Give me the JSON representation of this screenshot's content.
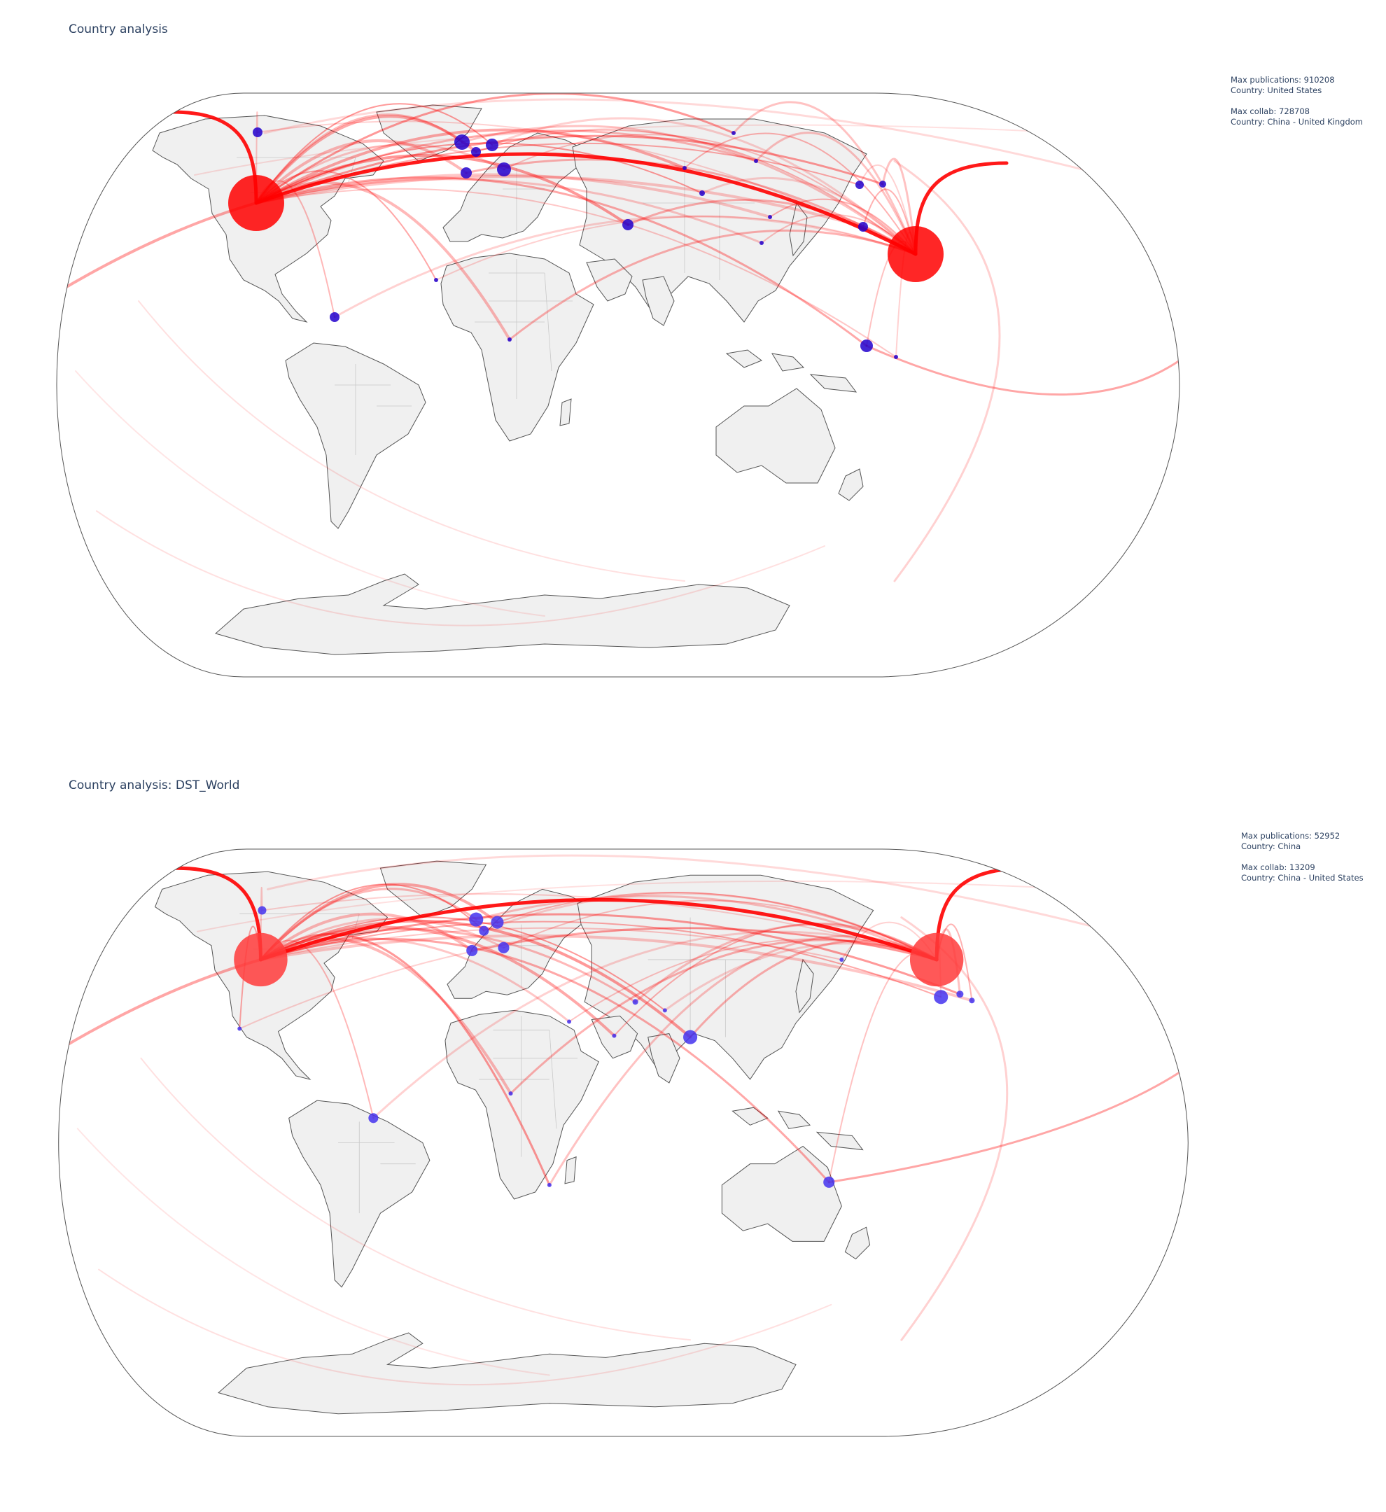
{
  "panels": [
    {
      "title": "Country analysis",
      "info": {
        "max_publications": "Max publications: 910208",
        "max_pub_country": "Country: United States",
        "max_collab": "Max collab: 728708",
        "max_collab_country": "Country: China - United Kingdom"
      },
      "colors": {
        "hub": "#ff0000",
        "node": "#2200cc",
        "arc": "#ff0000"
      }
    },
    {
      "title": "Country analysis: DST_World",
      "info": {
        "max_publications": "Max publications: 52952",
        "max_pub_country": "Country: China",
        "max_collab": "Max collab: 13209",
        "max_collab_country": "Country: China - United States"
      },
      "colors": {
        "hub": "#ff3b3b",
        "node": "#4433ee",
        "arc": "#ff0000"
      }
    }
  ]
}
